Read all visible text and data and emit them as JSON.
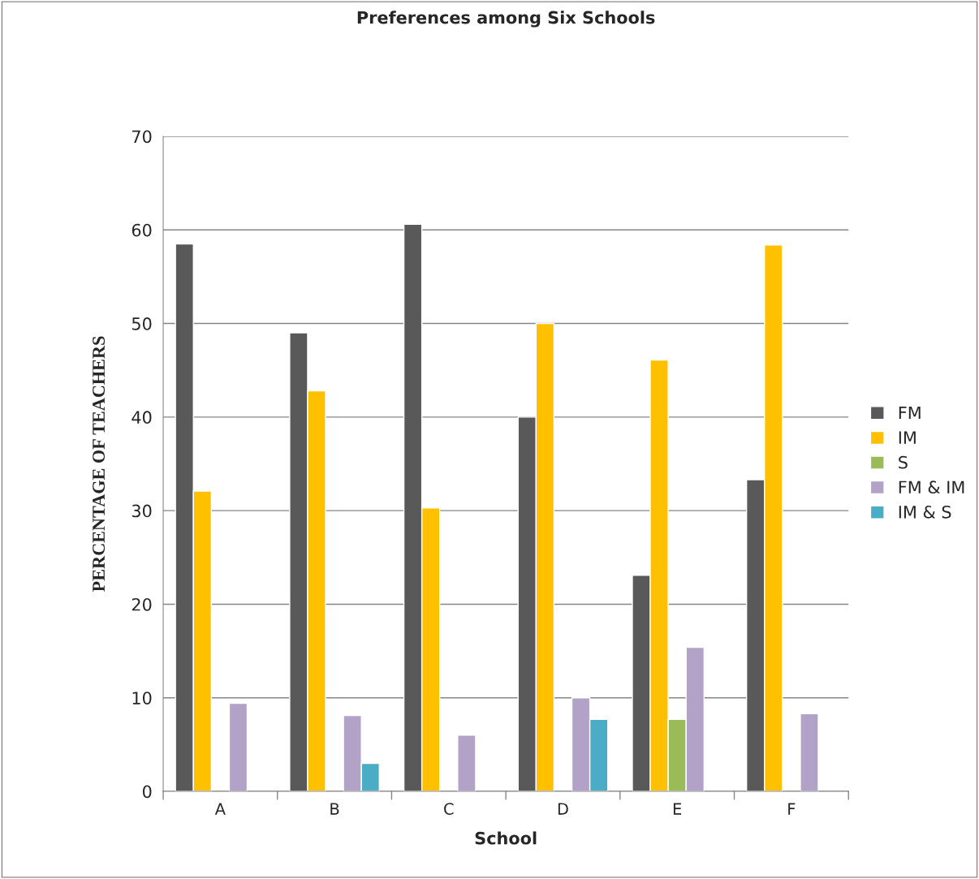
{
  "chart_data": {
    "type": "bar",
    "title": "Preferences among Six Schools",
    "xlabel": "School",
    "ylabel": "PERCENTAGE OF TEACHERS",
    "categories": [
      "A",
      "B",
      "C",
      "D",
      "E",
      "F"
    ],
    "series": [
      {
        "name": "FM",
        "color": "#595959",
        "values": [
          58.5,
          49.0,
          60.6,
          40.0,
          23.1,
          33.3
        ]
      },
      {
        "name": "IM",
        "color": "#ffc000",
        "values": [
          32.1,
          42.8,
          30.3,
          50.0,
          46.1,
          58.4
        ]
      },
      {
        "name": "S",
        "color": "#9bbb59",
        "values": [
          null,
          null,
          null,
          null,
          7.7,
          null
        ]
      },
      {
        "name": "FM & IM",
        "color": "#b3a2c7",
        "values": [
          9.4,
          8.1,
          6.0,
          10.0,
          15.4,
          8.3
        ]
      },
      {
        "name": "IM & S",
        "color": "#4bacc6",
        "values": [
          null,
          3.0,
          null,
          7.7,
          null,
          null
        ]
      }
    ],
    "ylim": [
      0,
      70
    ],
    "yticks": [
      0,
      10,
      20,
      30,
      40,
      50,
      60,
      70
    ],
    "grid": "y",
    "legend": "right"
  }
}
